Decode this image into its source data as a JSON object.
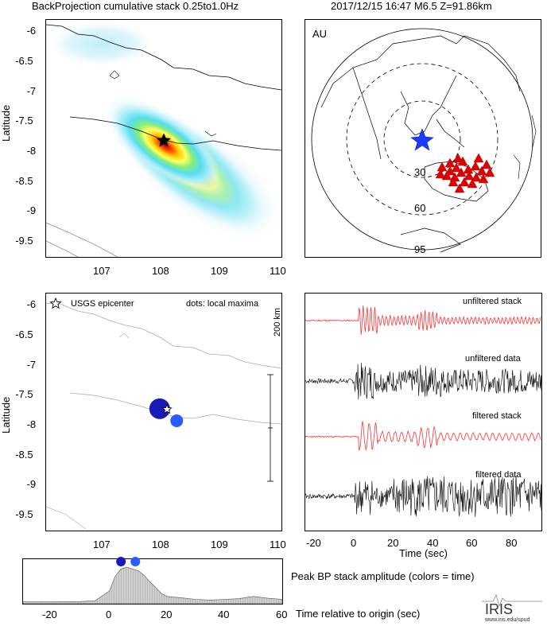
{
  "header": {
    "title": "BackProjection cumulative stack 0.25to1.0Hz",
    "event": "2017/12/15 16:47  M6.5  Z=91.86km"
  },
  "map_axes": {
    "ylabel": "Latitude",
    "yticks": [
      "-6",
      "-6.5",
      "-7",
      "-7.5",
      "-8",
      "-8.5",
      "-9",
      "-9.5"
    ],
    "xticks": [
      "107",
      "108",
      "109",
      "110"
    ]
  },
  "global_map": {
    "network": "AU",
    "rings": [
      "30",
      "60",
      "95"
    ]
  },
  "maxima_map": {
    "legend_epicenter": "USGS epicenter",
    "legend_dots": "dots: local maxima",
    "scale_label": "200 km"
  },
  "traces": {
    "labels": [
      "unfiltered stack",
      "unfiltered data",
      "filtered stack",
      "filtered data"
    ],
    "xlabel": "Time (sec)",
    "xticks": [
      "-20",
      "0",
      "20",
      "40",
      "60",
      "80"
    ]
  },
  "chart_data": [
    {
      "type": "heatmap",
      "title": "BackProjection cumulative stack 0.25to1.0Hz",
      "ylabel": "Latitude",
      "xlim": [
        106.0,
        110.0
      ],
      "ylim": [
        -9.75,
        -5.8
      ],
      "peak": {
        "lon": 108.0,
        "lat": -7.73
      },
      "epicenter": {
        "lon": 108.0,
        "lat": -7.73
      }
    },
    {
      "type": "scatter",
      "title": "local maxima",
      "xlim": [
        106.0,
        110.0
      ],
      "ylim": [
        -9.75,
        -5.8
      ],
      "points": [
        {
          "lon": 107.93,
          "lat": -7.72,
          "size": "large",
          "color": "#1a1ab8"
        },
        {
          "lon": 108.22,
          "lat": -7.92,
          "size": "small",
          "color": "#2a5cff"
        }
      ],
      "epicenter": {
        "lon": 108.0,
        "lat": -7.73
      }
    },
    {
      "type": "area",
      "title": "Peak BP stack amplitude (colors = time)",
      "xlabel": "Time relative to origin (sec)",
      "xlim": [
        -30,
        60
      ],
      "xticks": [
        "-20",
        "0",
        "20",
        "40",
        "60"
      ],
      "x": [
        -30,
        -20,
        -10,
        -5,
        0,
        2,
        4,
        6,
        8,
        10,
        12,
        14,
        16,
        18,
        20,
        25,
        30,
        35,
        40,
        45,
        50,
        55,
        60
      ],
      "values": [
        0.05,
        0.05,
        0.06,
        0.08,
        0.35,
        0.75,
        0.95,
        1.0,
        0.95,
        0.9,
        0.78,
        0.6,
        0.45,
        0.28,
        0.2,
        0.16,
        0.12,
        0.1,
        0.12,
        0.14,
        0.2,
        0.15,
        0.12
      ],
      "maxima_times": [
        4,
        9
      ]
    }
  ]
}
